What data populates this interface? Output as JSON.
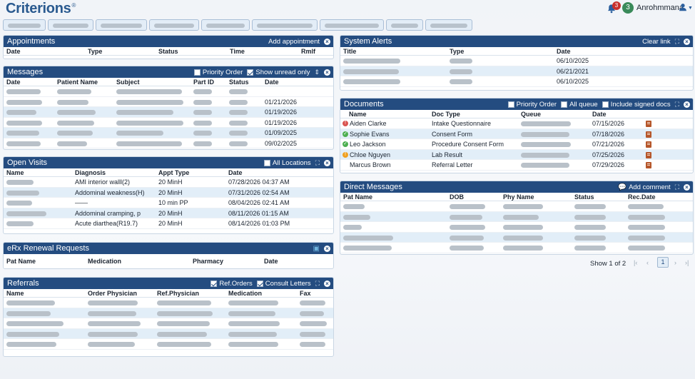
{
  "app": {
    "logo": "Criterions",
    "logo_mark": "®",
    "notifications": "3",
    "user_badge": "3",
    "user_name": "Anrohmmana"
  },
  "appointments": {
    "title": "Appointments",
    "add": "Add appointment",
    "columns": [
      "Date",
      "Type",
      "Status",
      "Time",
      "Rmlf"
    ]
  },
  "messages": {
    "title": "Messages",
    "priority": "Priority Order",
    "unread": "Show unread only",
    "columns": [
      "Date",
      "Patient Name",
      "Subject",
      "Part ID",
      "Status",
      "Date"
    ],
    "dates": [
      "",
      "01/21/2026",
      "01/19/2026",
      "01/19/2026",
      "01/09/2025",
      "09/02/2025"
    ]
  },
  "open_visits": {
    "title": "Open Visits",
    "all_locations": "All Locations",
    "columns": [
      "Name",
      "Diagnosis",
      "Appt Type",
      "Date"
    ],
    "rows": [
      {
        "diagnosis": "AMI interior walll(2)",
        "type": "20 MinH",
        "date": "07/28/2026 04:37 AM"
      },
      {
        "diagnosis": "Addominal weakness(H)",
        "type": "20 MinH",
        "date": "07/31/2026 02:54 AM"
      },
      {
        "diagnosis": "——",
        "type": "10 min PP",
        "date": "08/04/2026 02:41 AM"
      },
      {
        "diagnosis": "Addominal cramping, p",
        "type": "20 MinH",
        "date": "08/11/2026 01:15 AM"
      },
      {
        "diagnosis": "Acute diarthea(R19.7)",
        "type": "20 MinH",
        "date": "08/14/2026 01:03 PM"
      }
    ]
  },
  "erx": {
    "title": "eRx Renewal Requests",
    "columns": [
      "Pat Name",
      "Medication",
      "Pharmacy",
      "Date"
    ]
  },
  "referrals": {
    "title": "Referrals",
    "ref_orders": "Ref.Orders",
    "consult": "Consult Letters",
    "columns": [
      "Name",
      "Order Physician",
      "Ref.Physician",
      "Medication",
      "Fax"
    ]
  },
  "alerts": {
    "title": "System Alerts",
    "clear": "Clear link",
    "columns": [
      "Title",
      "Type",
      "Date"
    ],
    "dates": [
      "06/10/2025",
      "06/21/2021",
      "06/10/2025"
    ]
  },
  "documents": {
    "title": "Documents",
    "priority": "Priority Order",
    "all_queue": "All queue",
    "signed": "Include signed docs",
    "columns": [
      "Name",
      "Doc Type",
      "Queue",
      "Date"
    ],
    "rows": [
      {
        "name": "Aiden Clarke",
        "type": "Intake Questionnaire",
        "date": "07/15/2026",
        "status": "error",
        "status_color": "#d9534f"
      },
      {
        "name": "Sophie Evans",
        "type": "Consent Form",
        "date": "07/18/2026",
        "status": "ok",
        "status_color": "#4caf50"
      },
      {
        "name": "Leo Jackson",
        "type": "Procedure Consent Form",
        "date": "07/21/2026",
        "status": "ok",
        "status_color": "#4caf50"
      },
      {
        "name": "Chloe Nguyen",
        "type": "Lab Result",
        "date": "07/25/2026",
        "status": "warning",
        "status_color": "#f0a020"
      },
      {
        "name": "Marcus Brown",
        "type": "Referral Letter",
        "date": "07/29/2026",
        "status": "none",
        "status_color": ""
      }
    ]
  },
  "direct_messages": {
    "title": "Direct Messages",
    "add": "Add comment",
    "columns": [
      "Pat Name",
      "DOB",
      "Phy Name",
      "Status",
      "Rec.Date"
    ],
    "pager_label": "Show 1 of 2",
    "page": "1"
  }
}
